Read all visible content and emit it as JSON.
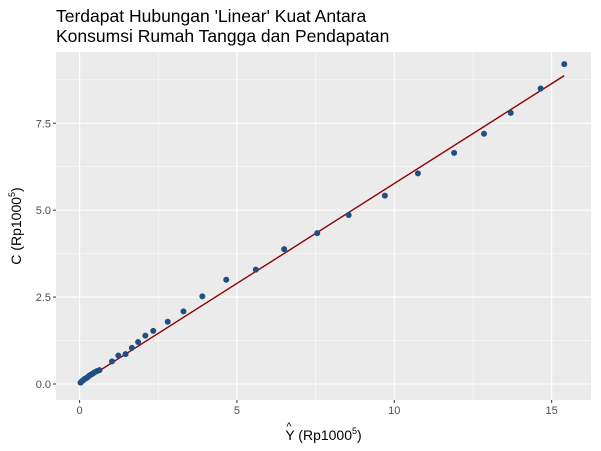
{
  "chart_data": {
    "type": "scatter",
    "title_line1": "Terdapat Hubungan 'Linear' Kuat Antara",
    "title_line2": "Konsumsi Rumah Tangga dan Pendapatan",
    "xlabel": {
      "pre": "Y",
      "hat": "^",
      "mid": " (Rp1000",
      "sup": "5",
      "post": ")"
    },
    "ylabel": {
      "pre": "C (Rp1000",
      "sup": "5",
      "post": ")"
    },
    "xlim": [
      -0.75,
      16.25
    ],
    "ylim": [
      -0.46,
      9.55
    ],
    "x_ticks": [
      0,
      5,
      10,
      15
    ],
    "x_tick_labels": [
      "0",
      "5",
      "10",
      "15"
    ],
    "y_ticks": [
      0,
      2.5,
      5,
      7.5
    ],
    "y_tick_labels": [
      "0.0",
      "2.5",
      "5.0",
      "7.5"
    ],
    "grid": true,
    "points": {
      "color": "#1f4e82",
      "x": [
        0.03,
        0.06,
        0.09,
        0.13,
        0.17,
        0.21,
        0.26,
        0.31,
        0.36,
        0.42,
        0.48,
        0.55,
        0.63,
        1.03,
        1.23,
        1.46,
        1.66,
        1.86,
        2.09,
        2.34,
        2.8,
        3.3,
        3.9,
        4.66,
        5.6,
        6.5,
        7.55,
        8.55,
        9.7,
        10.75,
        11.9,
        12.85,
        13.7,
        14.65,
        15.4
      ],
      "y": [
        0.04,
        0.07,
        0.09,
        0.12,
        0.15,
        0.17,
        0.2,
        0.24,
        0.27,
        0.3,
        0.34,
        0.37,
        0.4,
        0.65,
        0.82,
        0.86,
        1.04,
        1.21,
        1.39,
        1.53,
        1.79,
        2.09,
        2.52,
        3.0,
        3.29,
        3.88,
        4.34,
        4.86,
        5.42,
        6.06,
        6.65,
        7.2,
        7.8,
        8.5,
        9.2
      ]
    },
    "fit_line": {
      "color": "#8b0000",
      "x": [
        0.0,
        15.4
      ],
      "y": [
        0.02,
        8.87
      ]
    }
  }
}
